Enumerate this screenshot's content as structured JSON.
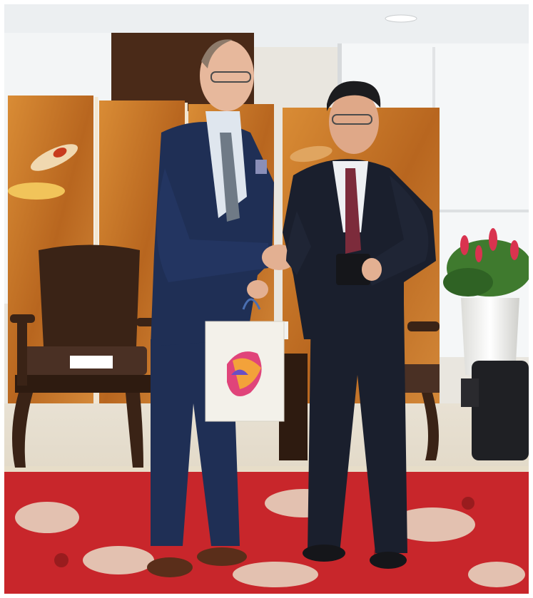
{
  "photo": {
    "subject": "",
    "colors": {
      "ceiling": "#eef0f2",
      "window": "#f4f6f7",
      "screen_gold": "#c97a2a",
      "screen_dark": "#8a4a16",
      "wall_dark": "#4a2a18",
      "carpet_red": "#c8262b",
      "carpet_cream": "#e7ddc8",
      "suit_left": "#1f2f55",
      "suit_right": "#1a1f2d",
      "chair_wood": "#3a2316",
      "vase": "#f1f1ef",
      "flowers": "#d9334f",
      "leaves": "#3f7a2e",
      "ottoman": "#1f2024",
      "bag": "#f3f1ea"
    }
  }
}
